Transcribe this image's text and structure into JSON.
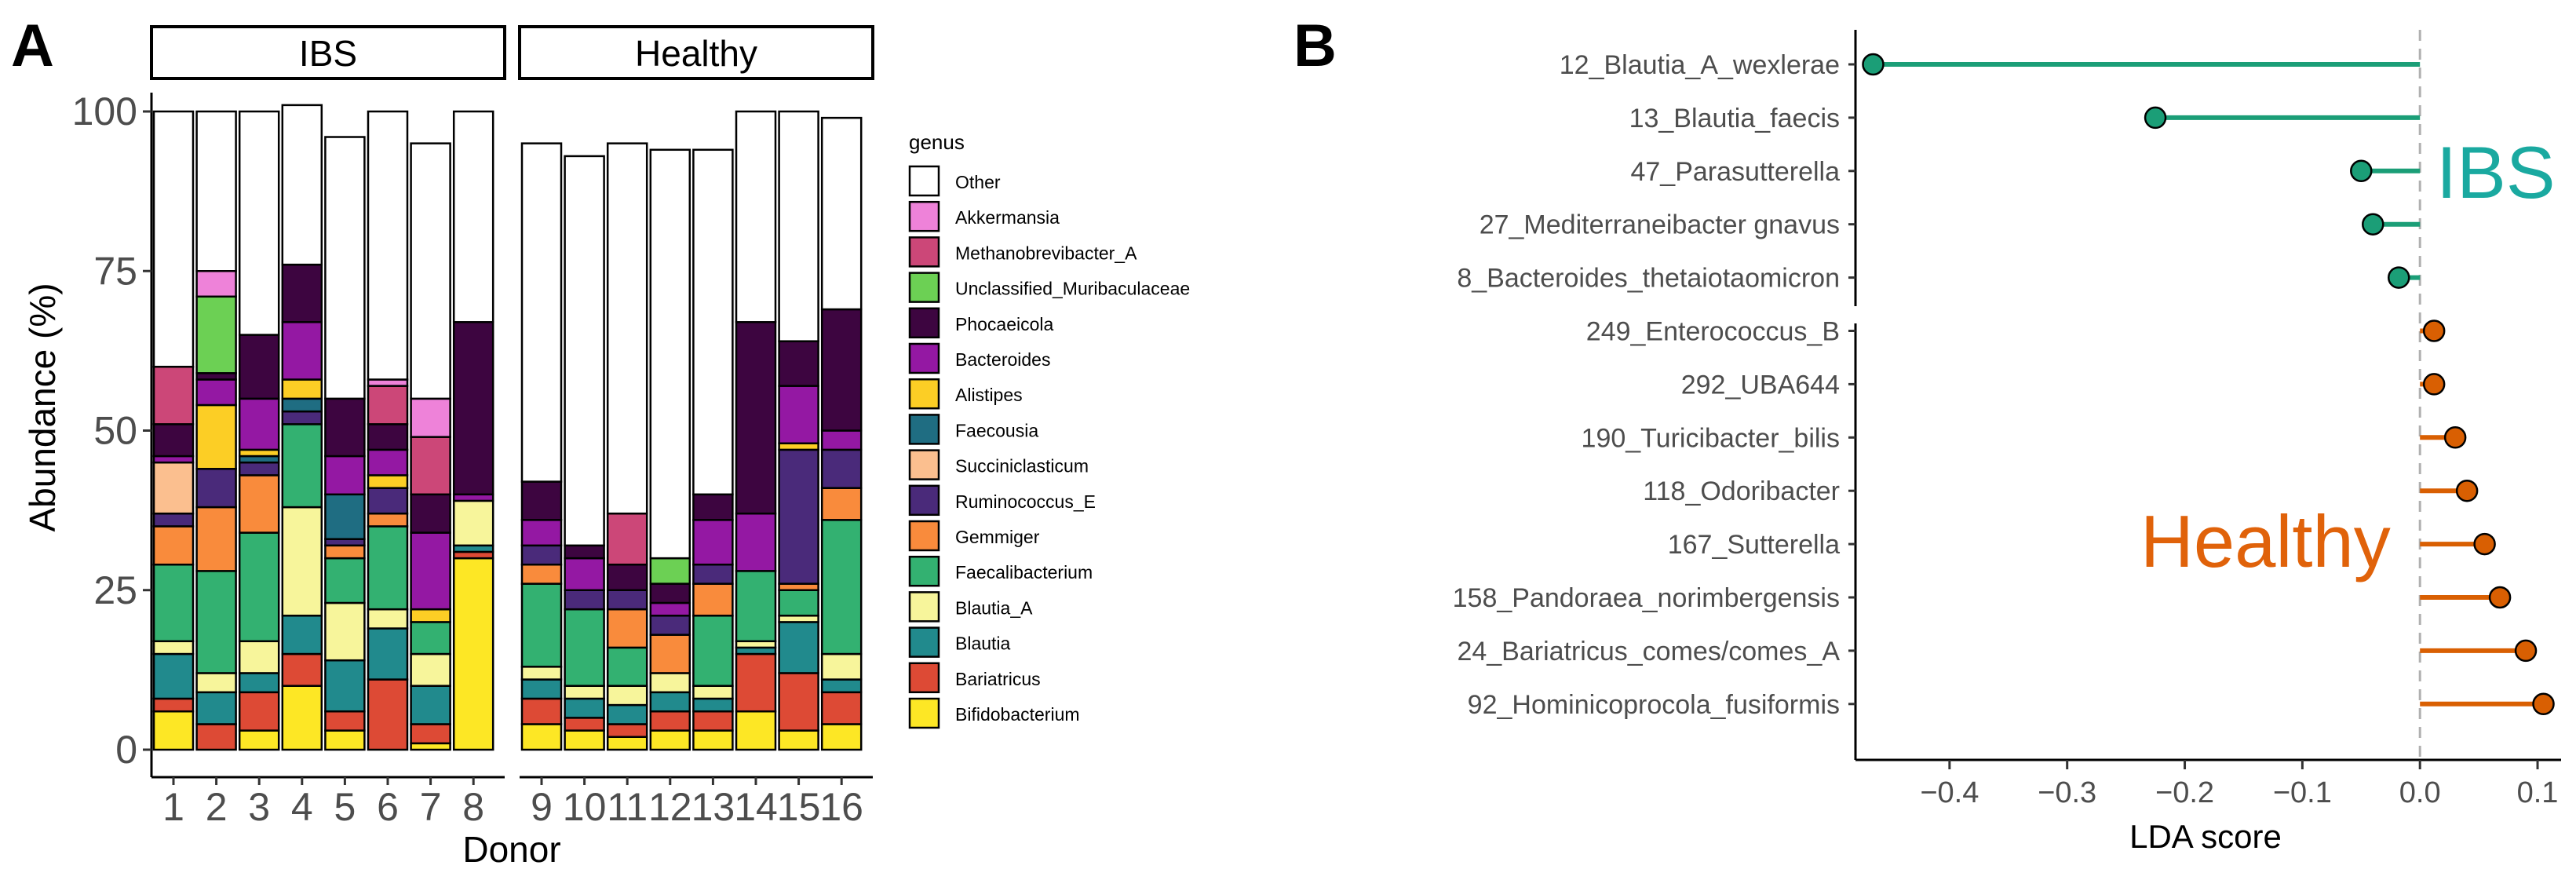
{
  "panel_a": {
    "letter": "A",
    "strip_ibs": "IBS",
    "strip_healthy": "Healthy",
    "ylabel": "Abundance (%)",
    "xlabel": "Donor",
    "legend_title": "genus"
  },
  "panel_b": {
    "letter": "B",
    "xlabel": "LDA score",
    "ibs_label": "IBS",
    "healthy_label": "Healthy"
  },
  "colors": {
    "ibs": "#1b9e77",
    "healthy": "#d95f02",
    "ibs_text": "#1aa9a0",
    "healthy_text": "#e0620a"
  },
  "chart_data": [
    {
      "type": "bar",
      "stacked": true,
      "title": "",
      "xlabel": "Donor",
      "ylabel": "Abundance (%)",
      "ylim": [
        0,
        100
      ],
      "yticks": [
        0,
        25,
        50,
        75,
        100
      ],
      "facets": [
        {
          "name": "IBS",
          "donors": [
            "1",
            "2",
            "3",
            "4",
            "5",
            "6",
            "7",
            "8"
          ]
        },
        {
          "name": "Healthy",
          "donors": [
            "9",
            "10",
            "11",
            "12",
            "13",
            "14",
            "15",
            "16"
          ]
        }
      ],
      "legend_title": "genus",
      "series": [
        {
          "name": "Bifidobacterium",
          "color": "#fde725",
          "values": [
            6,
            0,
            3,
            10,
            3,
            0,
            1,
            30,
            4,
            3,
            2,
            3,
            3,
            6,
            3,
            4
          ]
        },
        {
          "name": "Bariatricus",
          "color": "#dd4a35",
          "values": [
            2,
            4,
            6,
            5,
            3,
            11,
            3,
            1,
            4,
            2,
            2,
            3,
            3,
            9,
            9,
            5
          ]
        },
        {
          "name": "Blautia",
          "color": "#218a8d",
          "values": [
            7,
            5,
            3,
            6,
            8,
            8,
            6,
            1,
            3,
            3,
            3,
            3,
            2,
            1,
            8,
            2
          ]
        },
        {
          "name": "Blautia_A",
          "color": "#f7f59b",
          "values": [
            2,
            3,
            5,
            17,
            9,
            3,
            5,
            7,
            2,
            2,
            3,
            3,
            2,
            1,
            1,
            4
          ]
        },
        {
          "name": "Faecalibacterium",
          "color": "#33b171",
          "values": [
            12,
            16,
            17,
            13,
            7,
            13,
            5,
            0,
            13,
            12,
            6,
            0,
            11,
            11,
            4,
            21
          ]
        },
        {
          "name": "Gemmiger",
          "color": "#f98b3c",
          "values": [
            6,
            10,
            9,
            0,
            2,
            2,
            0,
            0,
            3,
            0,
            6,
            6,
            5,
            0,
            1,
            5
          ]
        },
        {
          "name": "Ruminococcus_E",
          "color": "#4a2a7a",
          "values": [
            2,
            6,
            2,
            2,
            1,
            4,
            0,
            0,
            3,
            3,
            3,
            3,
            3,
            0,
            21,
            6
          ]
        },
        {
          "name": "Succiniclasticum",
          "color": "#fbbf8f",
          "values": [
            8,
            0,
            0,
            0,
            0,
            0,
            0,
            0,
            0,
            0,
            0,
            0,
            0,
            0,
            0,
            0
          ]
        },
        {
          "name": "Faecousia",
          "color": "#1f6d82",
          "values": [
            0,
            0,
            1,
            2,
            7,
            0,
            0,
            0,
            0,
            0,
            0,
            0,
            0,
            0,
            0,
            0
          ]
        },
        {
          "name": "Alistipes",
          "color": "#fcce25",
          "values": [
            0,
            10,
            1,
            3,
            0,
            2,
            2,
            0,
            0,
            0,
            0,
            0,
            0,
            0,
            1,
            0
          ]
        },
        {
          "name": "Bacteroides",
          "color": "#9418a3",
          "values": [
            1,
            4,
            8,
            9,
            6,
            4,
            12,
            1,
            4,
            5,
            0,
            2,
            7,
            9,
            9,
            3
          ]
        },
        {
          "name": "Phocaeicola",
          "color": "#3d0540",
          "values": [
            5,
            1,
            10,
            9,
            9,
            4,
            6,
            27,
            6,
            2,
            4,
            3,
            4,
            30,
            7,
            19
          ]
        },
        {
          "name": "Unclassified_Muribaculaceae",
          "color": "#6cd054",
          "values": [
            0,
            12,
            0,
            0,
            0,
            0,
            0,
            0,
            0,
            0,
            0,
            4,
            0,
            0,
            0,
            0
          ]
        },
        {
          "name": "Methanobrevibacter_A",
          "color": "#cc4778",
          "values": [
            9,
            0,
            0,
            0,
            0,
            6,
            9,
            0,
            0,
            0,
            8,
            0,
            0,
            0,
            0,
            0
          ]
        },
        {
          "name": "Akkermansia",
          "color": "#ee82d9",
          "values": [
            0,
            4,
            0,
            0,
            0,
            1,
            6,
            0,
            0,
            0,
            0,
            0,
            0,
            0,
            0,
            0
          ]
        },
        {
          "name": "Other",
          "color": "#ffffff",
          "values": [
            40,
            25,
            35,
            25,
            41,
            42,
            40,
            33,
            53,
            61,
            58,
            64,
            54,
            33,
            36,
            30
          ]
        }
      ]
    },
    {
      "type": "lollipop",
      "title": "",
      "xlabel": "LDA score",
      "ylabel": "",
      "xlim": [
        -0.48,
        0.12
      ],
      "xticks": [
        -0.4,
        -0.3,
        -0.2,
        -0.1,
        0.0,
        0.1
      ],
      "xtick_labels": [
        "−0.4",
        "−0.3",
        "−0.2",
        "−0.1",
        "0.0",
        "0.1"
      ],
      "groups": [
        {
          "name": "IBS",
          "color": "#1b9e77",
          "features": [
            "12_Blautia_A_wexlerae",
            "13_Blautia_faecis",
            "47_Parasutterella",
            "27_Mediterraneibacter gnavus",
            "8_Bacteroides_thetaiotaomicron"
          ],
          "values": [
            -0.465,
            -0.225,
            -0.05,
            -0.04,
            -0.018
          ]
        },
        {
          "name": "Healthy",
          "color": "#d95f02",
          "features": [
            "249_Enterococcus_B",
            "292_UBA644",
            "190_Turicibacter_bilis",
            "118_Odoribacter",
            "167_Sutterella",
            "158_Pandoraea_norimbergensis",
            "24_Bariatricus_comes/comes_A",
            "92_Hominicoprocola_fusiformis"
          ],
          "values": [
            0.012,
            0.012,
            0.03,
            0.04,
            0.055,
            0.068,
            0.09,
            0.105
          ]
        }
      ]
    }
  ]
}
